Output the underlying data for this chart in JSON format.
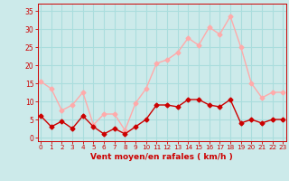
{
  "x": [
    0,
    1,
    2,
    3,
    4,
    5,
    6,
    7,
    8,
    9,
    10,
    11,
    12,
    13,
    14,
    15,
    16,
    17,
    18,
    19,
    20,
    21,
    22,
    23
  ],
  "wind_avg": [
    6,
    3,
    4.5,
    2.5,
    6,
    3,
    1,
    2.5,
    1,
    3,
    5,
    9,
    9,
    8.5,
    10.5,
    10.5,
    9,
    8.5,
    10.5,
    4,
    5,
    4,
    5,
    5
  ],
  "wind_gust": [
    15.5,
    13.5,
    7.5,
    9,
    12.5,
    3.5,
    6.5,
    6.5,
    2,
    9.5,
    13.5,
    20.5,
    21.5,
    23.5,
    27.5,
    25.5,
    30.5,
    28.5,
    33.5,
    25,
    15,
    11,
    12.5,
    12.5
  ],
  "avg_color": "#cc0000",
  "gust_color": "#ffaaaa",
  "bg_color": "#cceaea",
  "grid_color": "#aadddd",
  "xlabel": "Vent moyen/en rafales ( km/h )",
  "xlabel_color": "#cc0000",
  "tick_color": "#cc0000",
  "ylim": [
    -1,
    37
  ],
  "yticks": [
    0,
    5,
    10,
    15,
    20,
    25,
    30,
    35
  ],
  "xlim": [
    -0.3,
    23.3
  ]
}
